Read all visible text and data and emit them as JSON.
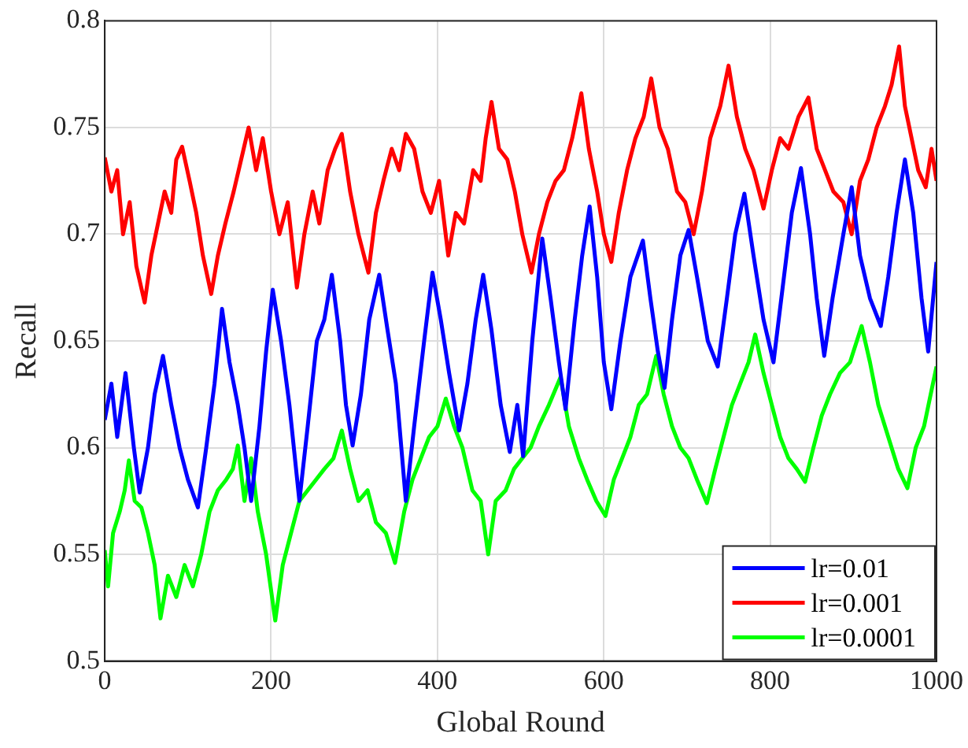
{
  "chart_data": {
    "type": "line",
    "xlabel": "Global Round",
    "ylabel": "Recall",
    "xlim": [
      0,
      1000
    ],
    "xticks": [
      0,
      200,
      400,
      600,
      800,
      1000
    ],
    "ylim": [
      0.5,
      0.8
    ],
    "yticks": [
      0.5,
      0.55,
      0.6,
      0.65,
      0.7,
      0.75,
      0.8
    ],
    "grid": true,
    "legend": "bottom right",
    "marker": "none",
    "line_style": "solid",
    "series": [
      {
        "name": "lr=0.01",
        "color": "#0000ff",
        "x": [
          0,
          8,
          15,
          25,
          35,
          42,
          52,
          60,
          70,
          80,
          90,
          100,
          112,
          122,
          132,
          141,
          150,
          160,
          168,
          176,
          186,
          194,
          202,
          212,
          222,
          234,
          244,
          255,
          264,
          273,
          283,
          290,
          298,
          308,
          318,
          330,
          340,
          350,
          362,
          372,
          384,
          394,
          404,
          414,
          426,
          436,
          446,
          455,
          465,
          476,
          487,
          496,
          503,
          514,
          526,
          536,
          546,
          554,
          565,
          574,
          583,
          592,
          600,
          609,
          620,
          632,
          647,
          656,
          665,
          673,
          682,
          692,
          702,
          712,
          725,
          737,
          748,
          758,
          769,
          780,
          792,
          804,
          815,
          826,
          837,
          848,
          856,
          865,
          875,
          888,
          898,
          908,
          920,
          933,
          942,
          952,
          962,
          972,
          982,
          990,
          1000
        ],
        "values": [
          0.613,
          0.63,
          0.605,
          0.635,
          0.6,
          0.579,
          0.6,
          0.625,
          0.643,
          0.62,
          0.6,
          0.585,
          0.572,
          0.6,
          0.63,
          0.665,
          0.64,
          0.62,
          0.6,
          0.575,
          0.61,
          0.645,
          0.674,
          0.65,
          0.62,
          0.575,
          0.61,
          0.65,
          0.66,
          0.681,
          0.65,
          0.62,
          0.601,
          0.625,
          0.66,
          0.681,
          0.655,
          0.63,
          0.575,
          0.61,
          0.65,
          0.682,
          0.66,
          0.635,
          0.608,
          0.63,
          0.66,
          0.681,
          0.655,
          0.62,
          0.598,
          0.62,
          0.596,
          0.65,
          0.698,
          0.67,
          0.64,
          0.618,
          0.66,
          0.69,
          0.713,
          0.68,
          0.64,
          0.618,
          0.65,
          0.68,
          0.697,
          0.67,
          0.645,
          0.628,
          0.66,
          0.69,
          0.702,
          0.68,
          0.65,
          0.638,
          0.67,
          0.7,
          0.719,
          0.69,
          0.66,
          0.64,
          0.675,
          0.71,
          0.731,
          0.7,
          0.67,
          0.643,
          0.67,
          0.7,
          0.722,
          0.69,
          0.67,
          0.657,
          0.68,
          0.71,
          0.735,
          0.71,
          0.67,
          0.645,
          0.687
        ]
      },
      {
        "name": "lr=0.001",
        "color": "#ff0000",
        "x": [
          0,
          8,
          15,
          22,
          30,
          38,
          48,
          56,
          64,
          72,
          80,
          86,
          93,
          102,
          110,
          118,
          128,
          136,
          145,
          155,
          164,
          173,
          182,
          190,
          200,
          210,
          220,
          231,
          240,
          250,
          258,
          268,
          277,
          285,
          295,
          305,
          317,
          326,
          335,
          345,
          354,
          362,
          372,
          382,
          392,
          402,
          413,
          422,
          432,
          443,
          452,
          458,
          465,
          474,
          484,
          493,
          502,
          513,
          522,
          532,
          542,
          552,
          562,
          573,
          582,
          592,
          600,
          609,
          618,
          628,
          638,
          648,
          657,
          667,
          677,
          688,
          698,
          708,
          718,
          728,
          740,
          750,
          760,
          770,
          780,
          792,
          802,
          812,
          822,
          834,
          846,
          856,
          866,
          876,
          888,
          898,
          908,
          918,
          928,
          938,
          946,
          955,
          962,
          970,
          978,
          987,
          994,
          1000
        ],
        "values": [
          0.736,
          0.72,
          0.73,
          0.7,
          0.715,
          0.685,
          0.668,
          0.69,
          0.705,
          0.72,
          0.71,
          0.735,
          0.741,
          0.725,
          0.71,
          0.69,
          0.672,
          0.69,
          0.705,
          0.72,
          0.735,
          0.75,
          0.73,
          0.745,
          0.72,
          0.7,
          0.715,
          0.675,
          0.7,
          0.72,
          0.705,
          0.73,
          0.74,
          0.747,
          0.72,
          0.7,
          0.682,
          0.71,
          0.725,
          0.74,
          0.73,
          0.747,
          0.74,
          0.72,
          0.71,
          0.725,
          0.69,
          0.71,
          0.705,
          0.73,
          0.725,
          0.745,
          0.762,
          0.74,
          0.735,
          0.72,
          0.7,
          0.682,
          0.7,
          0.715,
          0.725,
          0.73,
          0.745,
          0.766,
          0.74,
          0.72,
          0.7,
          0.687,
          0.71,
          0.73,
          0.745,
          0.755,
          0.773,
          0.75,
          0.74,
          0.72,
          0.715,
          0.7,
          0.72,
          0.745,
          0.76,
          0.779,
          0.755,
          0.74,
          0.73,
          0.712,
          0.73,
          0.745,
          0.74,
          0.755,
          0.764,
          0.74,
          0.73,
          0.72,
          0.715,
          0.7,
          0.725,
          0.735,
          0.75,
          0.76,
          0.77,
          0.788,
          0.76,
          0.745,
          0.73,
          0.722,
          0.74,
          0.725
        ]
      },
      {
        "name": "lr=0.0001",
        "color": "#00ff00",
        "x": [
          0,
          4,
          10,
          18,
          24,
          29,
          36,
          44,
          52,
          60,
          67,
          76,
          86,
          96,
          106,
          116,
          126,
          136,
          146,
          154,
          160,
          168,
          176,
          184,
          194,
          205,
          214,
          224,
          234,
          244,
          254,
          264,
          275,
          285,
          295,
          305,
          316,
          326,
          338,
          349,
          360,
          370,
          380,
          390,
          400,
          410,
          420,
          430,
          442,
          452,
          461,
          470,
          482,
          492,
          502,
          512,
          522,
          534,
          548,
          558,
          570,
          580,
          591,
          602,
          612,
          622,
          632,
          642,
          652,
          663,
          672,
          682,
          692,
          702,
          712,
          724,
          734,
          744,
          754,
          764,
          774,
          782,
          792,
          802,
          812,
          822,
          832,
          842,
          852,
          862,
          872,
          884,
          896,
          910,
          920,
          930,
          942,
          954,
          965,
          975,
          985,
          993,
          1000
        ],
        "values": [
          0.552,
          0.535,
          0.56,
          0.57,
          0.58,
          0.594,
          0.575,
          0.572,
          0.56,
          0.545,
          0.52,
          0.54,
          0.53,
          0.545,
          0.535,
          0.55,
          0.57,
          0.58,
          0.585,
          0.59,
          0.601,
          0.575,
          0.595,
          0.57,
          0.55,
          0.519,
          0.545,
          0.56,
          0.575,
          0.58,
          0.585,
          0.59,
          0.595,
          0.608,
          0.59,
          0.575,
          0.58,
          0.565,
          0.56,
          0.546,
          0.57,
          0.585,
          0.595,
          0.605,
          0.61,
          0.623,
          0.61,
          0.6,
          0.58,
          0.575,
          0.55,
          0.575,
          0.58,
          0.59,
          0.595,
          0.6,
          0.61,
          0.62,
          0.633,
          0.61,
          0.595,
          0.585,
          0.575,
          0.568,
          0.585,
          0.595,
          0.605,
          0.62,
          0.625,
          0.643,
          0.625,
          0.61,
          0.6,
          0.595,
          0.585,
          0.574,
          0.59,
          0.605,
          0.62,
          0.63,
          0.64,
          0.653,
          0.635,
          0.62,
          0.605,
          0.595,
          0.59,
          0.584,
          0.6,
          0.615,
          0.625,
          0.635,
          0.64,
          0.657,
          0.64,
          0.62,
          0.605,
          0.59,
          0.581,
          0.6,
          0.61,
          0.625,
          0.638
        ]
      }
    ]
  }
}
